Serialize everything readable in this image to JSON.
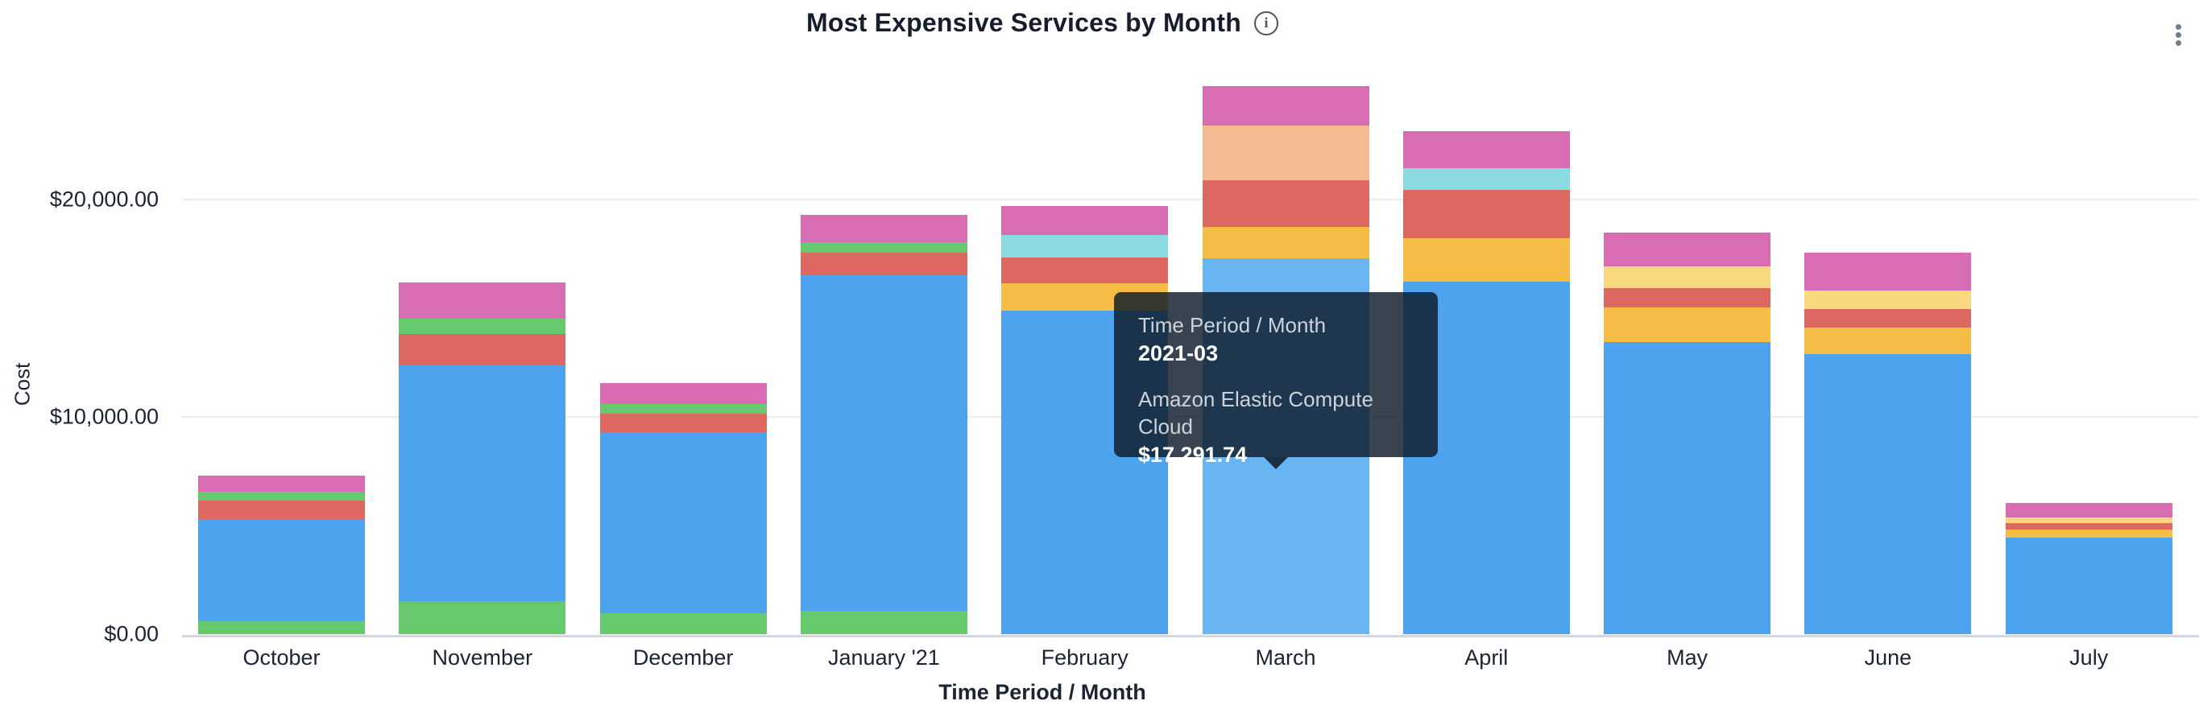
{
  "header": {
    "title": "Most Expensive Services by Month",
    "info_icon": "info-circle-icon",
    "menu_icon": "kebab-vertical-icon"
  },
  "axes": {
    "y_label": "Cost",
    "x_label": "Time Period / Month",
    "y_ticks": [
      {
        "label": "$0.00",
        "value": 0
      },
      {
        "label": "$10,000.00",
        "value": 10000
      },
      {
        "label": "$20,000.00",
        "value": 20000
      }
    ]
  },
  "tooltip": {
    "header_label": "Time Period / Month",
    "header_value": "2021-03",
    "series_label": "Amazon Elastic Compute Cloud",
    "series_value": "$17,291.74"
  },
  "colors": {
    "blue": "#4da3ed",
    "blue_light": "#68b5f2",
    "green": "#66c96d",
    "red": "#dd6862",
    "pink": "#d96db3",
    "yellow": "#f5bd45",
    "pale_yellow": "#fad87f",
    "teal": "#89dbdf",
    "peach": "#f4bb92",
    "gridline": "#ececec",
    "axis_line": "#cfd8e6",
    "text": "#1b2433",
    "tooltip_bg": "rgba(13,27,42,0.82)"
  },
  "chart_data": {
    "type": "bar",
    "stacked": true,
    "title": "Most Expensive Services by Month",
    "xlabel": "Time Period / Month",
    "ylabel": "Cost",
    "ylim": [
      0,
      26000
    ],
    "y_tick_values": [
      0,
      10000,
      20000
    ],
    "grid": true,
    "legend": false,
    "categories": [
      "October",
      "November",
      "December",
      "January '21",
      "February",
      "March",
      "April",
      "May",
      "June",
      "July"
    ],
    "highlighted_category": "March",
    "identified_series": {
      "color": "blue",
      "label": "Amazon Elastic Compute Cloud",
      "value_2021_03": 17291.74
    },
    "months": [
      {
        "label": "October",
        "segments": [
          {
            "color": "green",
            "value": 590
          },
          {
            "color": "blue",
            "value": 4700
          },
          {
            "color": "red",
            "value": 850
          },
          {
            "color": "green",
            "value": 410
          },
          {
            "color": "pink",
            "value": 740
          }
        ]
      },
      {
        "label": "November",
        "segments": [
          {
            "color": "green",
            "value": 1520
          },
          {
            "color": "blue",
            "value": 10850
          },
          {
            "color": "red",
            "value": 1440
          },
          {
            "color": "green",
            "value": 700
          },
          {
            "color": "pink",
            "value": 1670
          }
        ]
      },
      {
        "label": "December",
        "segments": [
          {
            "color": "green",
            "value": 960
          },
          {
            "color": "blue",
            "value": 8330
          },
          {
            "color": "red",
            "value": 850
          },
          {
            "color": "green",
            "value": 440
          },
          {
            "color": "pink",
            "value": 960
          }
        ]
      },
      {
        "label": "January '21",
        "segments": [
          {
            "color": "green",
            "value": 1070
          },
          {
            "color": "blue",
            "value": 15440
          },
          {
            "color": "red",
            "value": 1040
          },
          {
            "color": "green",
            "value": 480
          },
          {
            "color": "pink",
            "value": 1260
          }
        ]
      },
      {
        "label": "February",
        "segments": [
          {
            "color": "blue",
            "value": 14890
          },
          {
            "color": "yellow",
            "value": 1260
          },
          {
            "color": "red",
            "value": 1185
          },
          {
            "color": "teal",
            "value": 1040
          },
          {
            "color": "pink",
            "value": 1330
          }
        ]
      },
      {
        "label": "March",
        "segments": [
          {
            "color": "blue_light",
            "value": 17291.74,
            "series": "Amazon Elastic Compute Cloud"
          },
          {
            "color": "yellow",
            "value": 1440
          },
          {
            "color": "red",
            "value": 2150
          },
          {
            "color": "peach",
            "value": 2520
          },
          {
            "color": "pink",
            "value": 1815
          }
        ]
      },
      {
        "label": "April",
        "segments": [
          {
            "color": "blue",
            "value": 16220
          },
          {
            "color": "yellow",
            "value": 2000
          },
          {
            "color": "red",
            "value": 2220
          },
          {
            "color": "teal",
            "value": 1000
          },
          {
            "color": "pink",
            "value": 1700
          }
        ]
      },
      {
        "label": "May",
        "segments": [
          {
            "color": "blue",
            "value": 13440
          },
          {
            "color": "yellow",
            "value": 1590
          },
          {
            "color": "red",
            "value": 890
          },
          {
            "color": "pale_yellow",
            "value": 1000
          },
          {
            "color": "pink",
            "value": 1550
          }
        ]
      },
      {
        "label": "June",
        "segments": [
          {
            "color": "blue",
            "value": 12890
          },
          {
            "color": "yellow",
            "value": 1220
          },
          {
            "color": "red",
            "value": 850
          },
          {
            "color": "pale_yellow",
            "value": 850
          },
          {
            "color": "pink",
            "value": 1740
          }
        ]
      },
      {
        "label": "July",
        "segments": [
          {
            "color": "blue",
            "value": 4440
          },
          {
            "color": "yellow",
            "value": 370
          },
          {
            "color": "red",
            "value": 300
          },
          {
            "color": "pale_yellow",
            "value": 260
          },
          {
            "color": "pink",
            "value": 670
          }
        ]
      }
    ]
  }
}
